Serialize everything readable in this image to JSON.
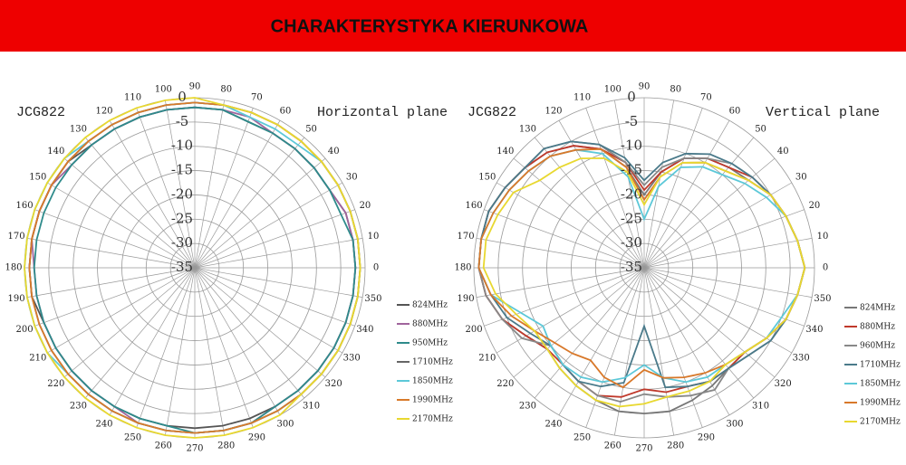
{
  "banner": "CHARAKTERYSTYKA KIERUNKOWA",
  "chart_data": [
    {
      "type": "polar",
      "label": "JCG822",
      "title": "Horizontal plane",
      "theta": [
        0,
        10,
        20,
        30,
        40,
        50,
        60,
        70,
        80,
        90,
        100,
        110,
        120,
        130,
        140,
        150,
        160,
        170,
        180,
        190,
        200,
        210,
        220,
        230,
        240,
        250,
        260,
        270,
        280,
        290,
        300,
        310,
        320,
        330,
        340,
        350
      ],
      "rlim": [
        -35,
        0
      ],
      "rticks": [
        0,
        -5,
        -10,
        -15,
        -20,
        -25,
        -30,
        -35
      ],
      "series": [
        {
          "name": "824MHz",
          "color": "#555555",
          "values": [
            -2,
            -2,
            -2,
            -3,
            -3,
            -3,
            -3,
            -3,
            -2,
            -2,
            -2,
            -2,
            -2,
            -2,
            -1,
            -1,
            -1,
            -1,
            -1,
            -1,
            -2,
            -2,
            -2,
            -2,
            -2,
            -2,
            -2,
            -2,
            -2,
            -2,
            -2,
            -2,
            -2,
            -2,
            -2,
            -2
          ]
        },
        {
          "name": "880MHz",
          "color": "#a0649c",
          "values": [
            -2,
            -2,
            -2,
            -3,
            -3,
            -3,
            -3,
            -2,
            -2,
            -2,
            -2,
            -2,
            -2,
            -2,
            -2,
            -1,
            -1,
            -1,
            -2,
            -2,
            -2,
            -2,
            -2,
            -2,
            -2,
            -1,
            -1,
            -1,
            -1,
            -1,
            -2,
            -2,
            -2,
            -2,
            -2,
            -2
          ]
        },
        {
          "name": "950MHz",
          "color": "#2e8b8b",
          "values": [
            -2,
            -2,
            -3,
            -3,
            -3,
            -3,
            -3,
            -3,
            -2,
            -2,
            -2,
            -2,
            -2,
            -2,
            -2,
            -2,
            -2,
            -2,
            -2,
            -2,
            -2,
            -2,
            -2,
            -2,
            -2,
            -2,
            -2,
            -1,
            -1,
            -1,
            -2,
            -2,
            -2,
            -2,
            -2,
            -2
          ]
        },
        {
          "name": "1710MHz",
          "color": "#666666",
          "values": [
            -1,
            -1,
            -1,
            -1,
            -1,
            -1,
            -1,
            -1,
            -1,
            -1,
            -1,
            -1,
            -1,
            -1,
            -1,
            -1,
            -1,
            -1,
            -1,
            -1,
            -1,
            -1,
            -1,
            -1,
            -1,
            -1,
            -1,
            -1,
            -1,
            -1,
            -1,
            -1,
            -1,
            -1,
            -1,
            -1
          ]
        },
        {
          "name": "1850MHz",
          "color": "#5cc8d8",
          "values": [
            -1,
            -1,
            -1,
            -1,
            -1,
            -2,
            -2,
            -2,
            -1,
            -1,
            -1,
            -1,
            -1,
            -1,
            0,
            0,
            0,
            0,
            0,
            0,
            0,
            0,
            -1,
            -1,
            -1,
            -1,
            -1,
            -1,
            -1,
            -1,
            -1,
            -1,
            -1,
            -1,
            -1,
            -1
          ]
        },
        {
          "name": "1990MHz",
          "color": "#d87a2a",
          "values": [
            -1,
            -1,
            -1,
            -1,
            -1,
            -1,
            -1,
            -1,
            -1,
            -1,
            -1,
            -1,
            -1,
            -1,
            -1,
            -1,
            -1,
            -1,
            -1,
            -1,
            -1,
            -1,
            -1,
            -1,
            -1,
            -1,
            -1,
            -1,
            -1,
            -1,
            -1,
            -1,
            -1,
            -1,
            -1,
            -1
          ]
        },
        {
          "name": "2170MHz",
          "color": "#e8d830",
          "values": [
            -1,
            -1,
            -1,
            -1,
            -1,
            -1,
            -1,
            -1,
            -1,
            0,
            0,
            0,
            0,
            0,
            0,
            0,
            0,
            0,
            0,
            0,
            0,
            0,
            0,
            0,
            0,
            0,
            0,
            0,
            0,
            0,
            0,
            -1,
            -1,
            -1,
            -1,
            -1
          ]
        }
      ]
    },
    {
      "type": "polar",
      "label": "JCG822",
      "title": "Vertical plane",
      "theta": [
        0,
        10,
        20,
        30,
        40,
        50,
        60,
        70,
        80,
        90,
        100,
        110,
        120,
        130,
        140,
        150,
        160,
        170,
        180,
        190,
        200,
        210,
        220,
        230,
        240,
        250,
        260,
        270,
        280,
        290,
        300,
        310,
        320,
        330,
        340,
        350
      ],
      "rlim": [
        -35,
        0
      ],
      "rticks": [
        0,
        -5,
        -10,
        -15,
        -20,
        -25,
        -30,
        -35
      ],
      "series": [
        {
          "name": "824MHz",
          "color": "#777777",
          "values": [
            -2,
            -3,
            -4,
            -5,
            -7,
            -8,
            -9,
            -11,
            -15,
            -20,
            -14,
            -9,
            -6,
            -4,
            -3,
            -2,
            -1,
            -1,
            -1,
            -2,
            -4,
            -7,
            -9,
            -8,
            -7,
            -6,
            -5,
            -5,
            -5,
            -6,
            -7,
            -8,
            -8,
            -6,
            -4,
            -3
          ]
        },
        {
          "name": "880MHz",
          "color": "#c0392b",
          "values": [
            -2,
            -3,
            -4,
            -5,
            -6,
            -8,
            -9,
            -11,
            -15,
            -19,
            -13,
            -9,
            -6,
            -4,
            -3,
            -2,
            -1,
            -1,
            -1,
            -2,
            -4,
            -7,
            -9,
            -9,
            -8,
            -7,
            -8,
            -10,
            -9,
            -9,
            -8,
            -8,
            -8,
            -6,
            -4,
            -3
          ]
        },
        {
          "name": "960MHz",
          "color": "#888888",
          "values": [
            -2,
            -3,
            -4,
            -5,
            -6,
            -7,
            -9,
            -11,
            -14,
            -18,
            -13,
            -8,
            -5,
            -3,
            -3,
            -2,
            -1,
            -1,
            -1,
            -2,
            -4,
            -6,
            -10,
            -9,
            -8,
            -7,
            -7,
            -9,
            -8,
            -7,
            -6,
            -8,
            -7,
            -5,
            -4,
            -3
          ]
        },
        {
          "name": "1710MHz",
          "color": "#4a7a8a",
          "values": [
            -2,
            -3,
            -4,
            -5,
            -6,
            -7,
            -8,
            -10,
            -13,
            -17,
            -12,
            -8,
            -5,
            -3,
            -3,
            -2,
            -1,
            -1,
            -1,
            -3,
            -5,
            -8,
            -10,
            -9,
            -8,
            -9,
            -11,
            -23,
            -10,
            -9,
            -8,
            -8,
            -7,
            -5,
            -4,
            -3
          ]
        },
        {
          "name": "1850MHz",
          "color": "#5cc8d8",
          "values": [
            -2,
            -3,
            -4,
            -6,
            -8,
            -10,
            -11,
            -13,
            -18,
            -25,
            -16,
            -10,
            -7,
            -5,
            -4,
            -3,
            -2,
            -1,
            -1,
            -3,
            -8,
            -11,
            -10,
            -9,
            -9,
            -10,
            -12,
            -15,
            -12,
            -10,
            -9,
            -9,
            -8,
            -6,
            -5,
            -3
          ]
        },
        {
          "name": "1990MHz",
          "color": "#d8782a",
          "values": [
            -2,
            -3,
            -4,
            -5,
            -7,
            -9,
            -10,
            -12,
            -16,
            -21,
            -14,
            -9,
            -7,
            -5,
            -4,
            -3,
            -2,
            -1,
            -1,
            -3,
            -6,
            -9,
            -11,
            -12,
            -13,
            -11,
            -10,
            -14,
            -12,
            -11,
            -10,
            -9,
            -8,
            -6,
            -4,
            -3
          ]
        },
        {
          "name": "2170MHz",
          "color": "#e8d830",
          "values": [
            -2,
            -3,
            -4,
            -5,
            -7,
            -9,
            -10,
            -12,
            -16,
            -22,
            -15,
            -11,
            -9,
            -8,
            -7,
            -4,
            -3,
            -2,
            -2,
            -4,
            -7,
            -9,
            -9,
            -8,
            -7,
            -6,
            -6,
            -7,
            -8,
            -8,
            -8,
            -9,
            -8,
            -6,
            -4,
            -3
          ]
        }
      ]
    }
  ]
}
